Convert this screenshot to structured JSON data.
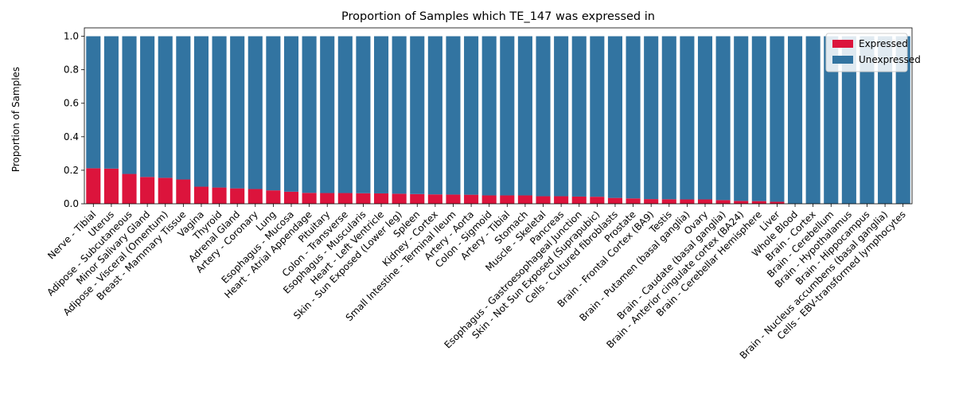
{
  "chart_data": {
    "type": "bar",
    "stacked": true,
    "title": "Proportion of Samples which TE_147 was expressed in",
    "xlabel": "",
    "ylabel": "Proportion of Samples",
    "ylim": [
      0,
      1.05
    ],
    "yticks": [
      "0.0",
      "0.2",
      "0.4",
      "0.6",
      "0.8",
      "1.0"
    ],
    "grid": false,
    "legend": "top-right",
    "categories": [
      "Nerve - Tibial",
      "Uterus",
      "Adipose - Subcutaneous",
      "Minor Salivary Gland",
      "Adipose - Visceral (Omentum)",
      "Breast - Mammary Tissue",
      "Vagina",
      "Thyroid",
      "Adrenal Gland",
      "Artery - Coronary",
      "Lung",
      "Esophagus - Mucosa",
      "Heart - Atrial Appendage",
      "Pituitary",
      "Colon - Transverse",
      "Esophagus - Muscularis",
      "Heart - Left Ventricle",
      "Skin - Sun Exposed (Lower leg)",
      "Spleen",
      "Kidney - Cortex",
      "Small Intestine - Terminal Ileum",
      "Artery - Aorta",
      "Colon - Sigmoid",
      "Artery - Tibial",
      "Stomach",
      "Muscle - Skeletal",
      "Pancreas",
      "Esophagus - Gastroesophageal Junction",
      "Skin - Not Sun Exposed (Suprapubic)",
      "Cells - Cultured fibroblasts",
      "Prostate",
      "Brain - Frontal Cortex (BA9)",
      "Testis",
      "Brain - Putamen (basal ganglia)",
      "Ovary",
      "Brain - Caudate (basal ganglia)",
      "Brain - Anterior cingulate cortex (BA24)",
      "Brain - Cerebellar Hemisphere",
      "Liver",
      "Whole Blood",
      "Brain - Cortex",
      "Brain - Cerebellum",
      "Brain - Hypothalamus",
      "Brain - Hippocampus",
      "Brain - Nucleus accumbens (basal ganglia)",
      "Cells - EBV-transformed lymphocytes"
    ],
    "series": [
      {
        "name": "Expressed",
        "color": "#dc143c",
        "values": [
          0.212,
          0.21,
          0.178,
          0.16,
          0.155,
          0.145,
          0.102,
          0.097,
          0.092,
          0.088,
          0.08,
          0.072,
          0.065,
          0.064,
          0.064,
          0.063,
          0.062,
          0.06,
          0.058,
          0.056,
          0.055,
          0.054,
          0.05,
          0.05,
          0.05,
          0.045,
          0.045,
          0.043,
          0.042,
          0.035,
          0.032,
          0.028,
          0.027,
          0.026,
          0.026,
          0.022,
          0.017,
          0.016,
          0.012,
          0.0,
          0.0,
          0.0,
          0.0,
          0.0,
          0.0,
          0.0
        ]
      },
      {
        "name": "Unexpressed",
        "color": "#3274a1",
        "values": [
          0.788,
          0.79,
          0.822,
          0.84,
          0.845,
          0.855,
          0.898,
          0.903,
          0.908,
          0.912,
          0.92,
          0.928,
          0.935,
          0.936,
          0.936,
          0.937,
          0.938,
          0.94,
          0.942,
          0.944,
          0.945,
          0.946,
          0.95,
          0.95,
          0.95,
          0.955,
          0.955,
          0.957,
          0.958,
          0.965,
          0.968,
          0.972,
          0.973,
          0.974,
          0.974,
          0.978,
          0.983,
          0.984,
          0.988,
          1.0,
          1.0,
          1.0,
          1.0,
          1.0,
          1.0,
          1.0
        ]
      }
    ]
  }
}
